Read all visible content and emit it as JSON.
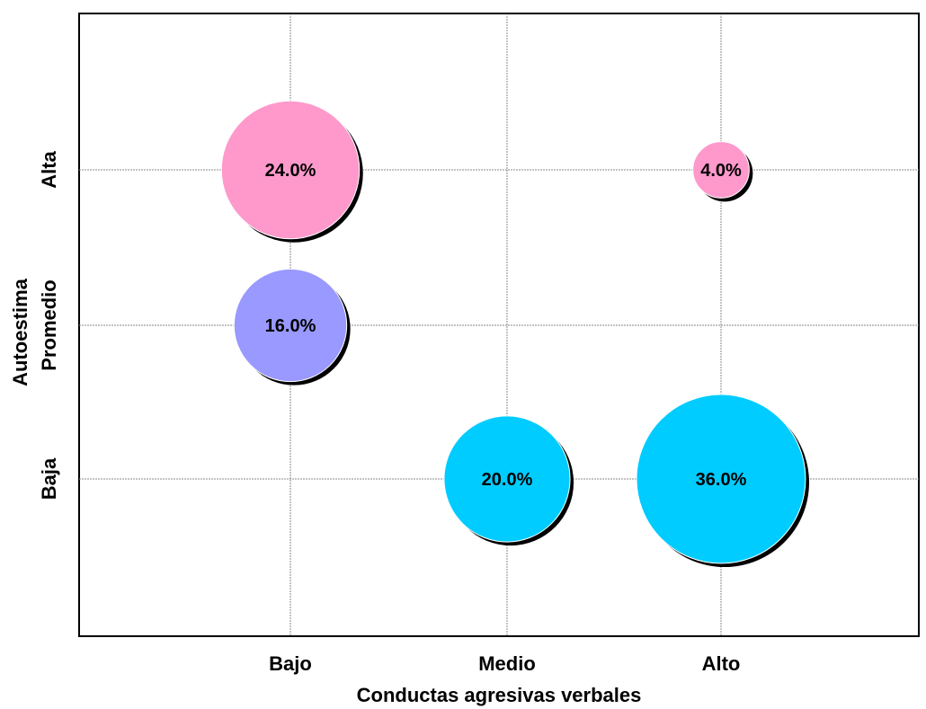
{
  "chart_data": {
    "type": "bubble",
    "title": "",
    "xlabel": "Conductas agresivas verbales",
    "ylabel": "Autoestima",
    "x_categories": [
      "Bajo",
      "Medio",
      "Alto"
    ],
    "y_categories": [
      "Baja",
      "Promedio",
      "Alta"
    ],
    "grid": true,
    "points": [
      {
        "x": "Bajo",
        "y": "Alta",
        "value": 24.0,
        "label": "24.0%",
        "color": "#ff99cc"
      },
      {
        "x": "Alto",
        "y": "Alta",
        "value": 4.0,
        "label": "4.0%",
        "color": "#ff99cc"
      },
      {
        "x": "Bajo",
        "y": "Promedio",
        "value": 16.0,
        "label": "16.0%",
        "color": "#9999ff"
      },
      {
        "x": "Medio",
        "y": "Baja",
        "value": 20.0,
        "label": "20.0%",
        "color": "#00ccff"
      },
      {
        "x": "Alto",
        "y": "Baja",
        "value": 36.0,
        "label": "36.0%",
        "color": "#00ccff"
      }
    ]
  }
}
